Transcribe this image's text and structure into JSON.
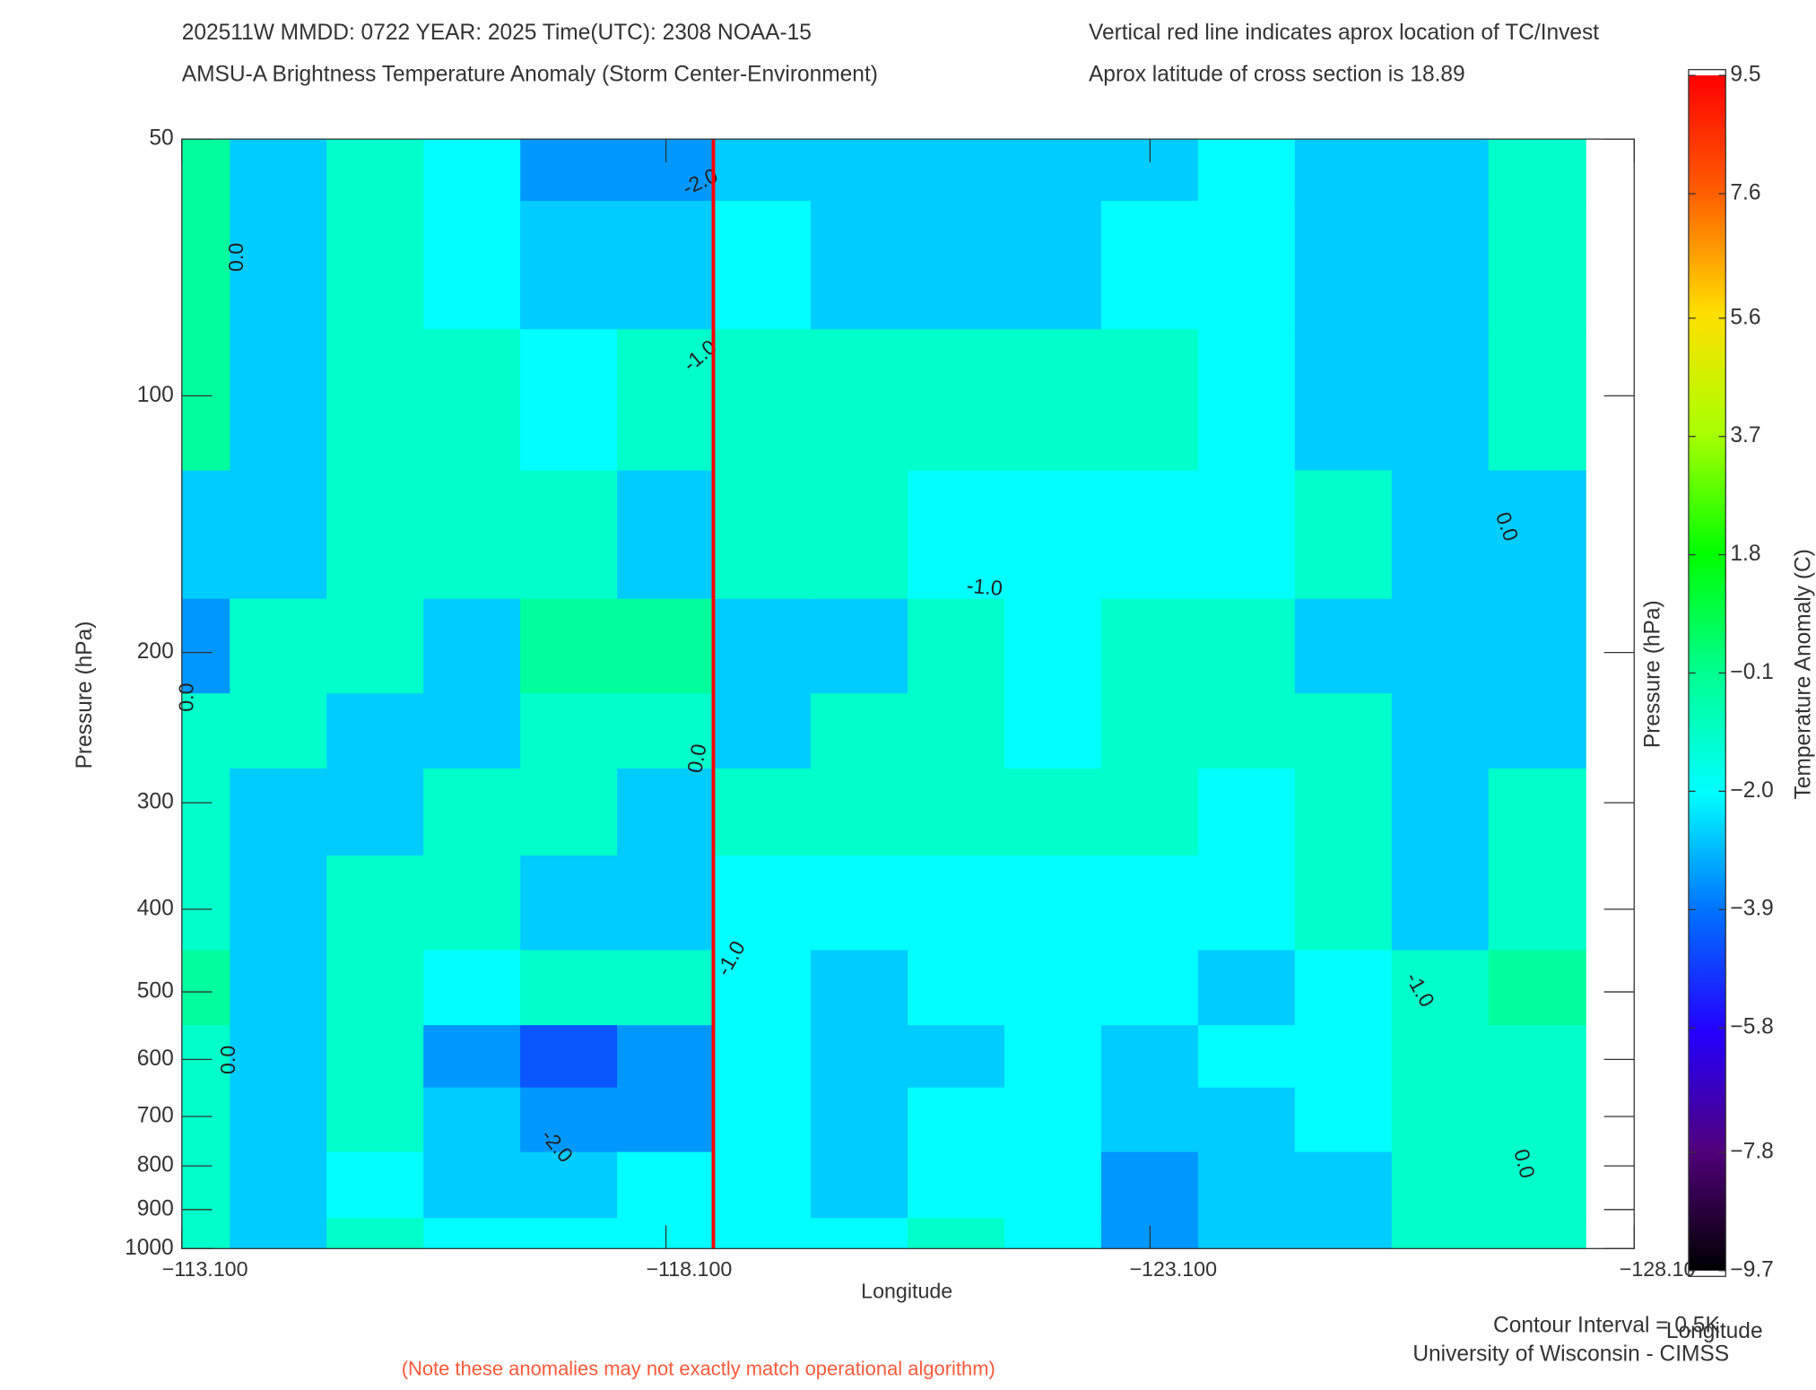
{
  "chart_data": {
    "type": "heatmap",
    "title": "202511W  MMDD: 0722 YEAR: 2025 Time(UTC): 2308 NOAA-15",
    "subtitle": "AMSU-A Brightness Temperature Anomaly (Storm Center-Environment)",
    "title_right": "Vertical red line indicates aprox location of TC/Invest",
    "subtitle_right": "Aprox latitude of cross section is 18.89",
    "xlabel": "Longitude",
    "ylabel": "Pressure (hPa)",
    "y2label": "Pressure (hPa)",
    "colorbar_label": "Temperature Anomaly (C)",
    "corner_label": "Longitude",
    "footer": [
      "Contour Interval = 0.5K",
      "University of Wisconsin - CIMSS"
    ],
    "note": "(Note these anomalies may not exactly match operational algorithm)",
    "x": [
      -113.1,
      -114.1,
      -115.1,
      -116.1,
      -117.1,
      -118.1,
      -119.1,
      -120.1,
      -121.1,
      -122.1,
      -123.1,
      -124.1,
      -125.1,
      -126.1,
      -127.1
    ],
    "y": [
      50,
      70,
      100,
      150,
      200,
      250,
      300,
      400,
      500,
      600,
      700,
      850,
      1000
    ],
    "z": [
      [
        -0.3,
        -2.7,
        -1.1,
        -2.0,
        -3.4,
        -3.4,
        -2.7,
        -2.7,
        -2.7,
        -2.7,
        -2.7,
        -2.0,
        -2.7,
        -2.7,
        -1.1
      ],
      [
        -0.3,
        -2.7,
        -1.1,
        -2.0,
        -2.7,
        -2.7,
        -2.0,
        -2.7,
        -2.7,
        -2.7,
        -2.0,
        -2.0,
        -2.7,
        -2.7,
        -1.1
      ],
      [
        -0.3,
        -2.7,
        -1.1,
        -1.1,
        -2.0,
        -1.1,
        -1.1,
        -1.1,
        -1.1,
        -1.1,
        -1.1,
        -2.0,
        -2.7,
        -2.7,
        -1.1
      ],
      [
        -2.7,
        -2.7,
        -1.1,
        -1.1,
        -1.1,
        -2.7,
        -1.1,
        -1.1,
        -2.0,
        -2.0,
        -2.0,
        -2.0,
        -1.1,
        -2.7,
        -2.7
      ],
      [
        -3.4,
        -1.1,
        -1.1,
        -2.7,
        -0.3,
        -0.3,
        -2.7,
        -2.7,
        -1.1,
        -2.0,
        -1.1,
        -1.1,
        -2.7,
        -2.7,
        -2.7
      ],
      [
        -1.1,
        -1.1,
        -2.7,
        -2.7,
        -1.1,
        -1.1,
        -2.7,
        -1.1,
        -1.1,
        -2.0,
        -1.1,
        -1.1,
        -1.1,
        -2.7,
        -2.7
      ],
      [
        -1.1,
        -2.7,
        -2.7,
        -1.1,
        -1.1,
        -2.7,
        -1.1,
        -1.1,
        -1.1,
        -1.1,
        -1.1,
        -2.0,
        -1.1,
        -2.7,
        -1.1
      ],
      [
        -1.1,
        -2.7,
        -1.1,
        -1.1,
        -2.7,
        -2.7,
        -2.0,
        -2.0,
        -2.0,
        -2.0,
        -2.0,
        -2.0,
        -1.1,
        -2.7,
        -1.1
      ],
      [
        -0.3,
        -2.7,
        -1.1,
        -2.0,
        -1.1,
        -1.1,
        -2.0,
        -2.7,
        -2.0,
        -2.0,
        -2.0,
        -2.7,
        -2.0,
        -1.1,
        -0.3
      ],
      [
        -1.1,
        -2.7,
        -1.1,
        -3.4,
        -4.4,
        -3.4,
        -2.0,
        -2.7,
        -2.7,
        -2.0,
        -2.7,
        -2.0,
        -2.0,
        -1.1,
        -1.1
      ],
      [
        -1.1,
        -2.7,
        -1.1,
        -2.7,
        -3.4,
        -3.4,
        -2.0,
        -2.7,
        -2.0,
        -2.0,
        -2.7,
        -2.7,
        -2.0,
        -1.1,
        -1.1
      ],
      [
        -1.1,
        -2.7,
        -2.0,
        -2.7,
        -2.7,
        -2.0,
        -2.0,
        -2.7,
        -2.0,
        -2.0,
        -3.4,
        -2.7,
        -2.7,
        -1.1,
        -1.1
      ],
      [
        -1.1,
        -2.7,
        -1.1,
        -2.0,
        -2.0,
        -2.0,
        -2.0,
        -2.0,
        -1.1,
        -2.0,
        -3.4,
        -2.7,
        -2.7,
        -1.1,
        -1.1
      ]
    ],
    "xlim": [
      -113.1,
      -128.1
    ],
    "xticks": [
      {
        "value": -113.1,
        "label": "−113.100"
      },
      {
        "value": -118.1,
        "label": "−118.100"
      },
      {
        "value": -123.1,
        "label": "−123.100"
      },
      {
        "value": -128.1,
        "label": "−128.10"
      }
    ],
    "ylim": [
      1000,
      50
    ],
    "log_y": true,
    "yticks": [
      50,
      100,
      200,
      300,
      400,
      500,
      600,
      700,
      800,
      900,
      1000
    ],
    "zlim": [
      -9.7,
      9.5
    ],
    "zticks": [
      9.5,
      7.6,
      5.6,
      3.7,
      1.8,
      {
        "value": -0.1,
        "label": "−0.1"
      },
      {
        "value": -2.0,
        "label": "−2.0"
      },
      {
        "value": -3.9,
        "label": "−3.9"
      },
      {
        "value": -5.8,
        "label": "−5.8"
      },
      {
        "value": -7.8,
        "label": "−7.8"
      },
      {
        "value": -9.7,
        "label": "−9.7"
      }
    ],
    "colors": [
      "#000000",
      "#50007a",
      "#2400ff",
      "#0070ff",
      "#00ffff",
      "#00ff90",
      "#00ff00",
      "#a8ff00",
      "#ffe000",
      "#ff6000",
      "#ff0000"
    ],
    "annotations": [
      "0.0",
      "-2.0",
      "-1.0",
      "-1.0",
      "0.0",
      "0.0",
      "0.0",
      "-1.0",
      "0.0",
      "-2.0",
      "-1.0",
      "0.0"
    ],
    "tc_longitude": -118.59,
    "tc_line_color": "#ff0000"
  }
}
